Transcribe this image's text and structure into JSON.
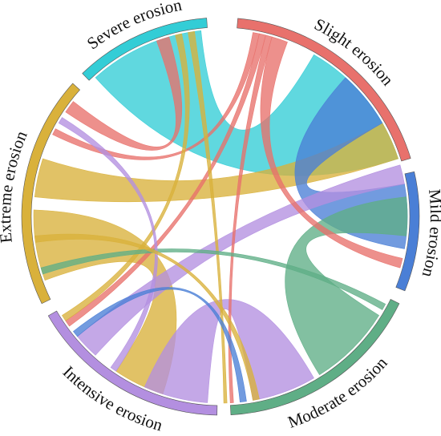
{
  "chart_data": {
    "type": "chord",
    "title": "",
    "segments": [
      {
        "name": "Slight erosion",
        "color": "#e8716c",
        "start_deg": 5,
        "end_deg": 73
      },
      {
        "name": "Mild erosion",
        "color": "#4a7fd6",
        "start_deg": 77,
        "end_deg": 112
      },
      {
        "name": "Moderate erosion",
        "color": "#5fae86",
        "start_deg": 116,
        "end_deg": 177
      },
      {
        "name": "Intensive erosion",
        "color": "#b38fe0",
        "start_deg": 181,
        "end_deg": 240
      },
      {
        "name": "Extreme erosion",
        "color": "#d9b13b",
        "start_deg": 244,
        "end_deg": 312
      },
      {
        "name": "Severe erosion",
        "color": "#33cdd6",
        "start_deg": 316,
        "end_deg": 356
      }
    ],
    "ribbons": [
      {
        "source": "Severe erosion",
        "target": "Slight erosion",
        "s": [
          318,
          354
        ],
        "t": [
          30,
          72
        ],
        "fill": "#33cdd6"
      },
      {
        "source": "Extreme erosion",
        "target": "Mild erosion",
        "s": [
          276,
          288
        ],
        "t": [
          60,
          72
        ],
        "fill": "#d9b13b"
      },
      {
        "source": "Extreme erosion",
        "target": "Intensive erosion",
        "s": [
          250,
          272
        ],
        "t": [
          198,
          214
        ],
        "fill": "#d9b13b"
      },
      {
        "source": "Mild erosion",
        "target": "Slight erosion",
        "s": [
          80,
          100
        ],
        "t": [
          42,
          60
        ],
        "fill": "#4a7fd6"
      },
      {
        "source": "Moderate erosion",
        "target": "Mild erosion",
        "s": [
          122,
          148
        ],
        "t": [
          84,
          96
        ],
        "fill": "#5fae86"
      },
      {
        "source": "Intensive erosion",
        "target": "Moderate erosion",
        "s": [
          184,
          204
        ],
        "t": [
          150,
          170
        ],
        "fill": "#b38fe0"
      },
      {
        "source": "Intensive erosion",
        "target": "Mild erosion",
        "s": [
          222,
          230
        ],
        "t": [
          74,
          80
        ],
        "fill": "#b38fe0"
      },
      {
        "source": "Slight erosion",
        "target": "Mild erosion",
        "s": [
          16,
          21
        ],
        "t": [
          103,
          106
        ],
        "fill": "#e8716c"
      },
      {
        "source": "Slight erosion",
        "target": "Extreme erosion",
        "s": [
          10,
          12
        ],
        "t": [
          296,
          298
        ],
        "fill": "#e8716c"
      },
      {
        "source": "Slight erosion",
        "target": "Intensive erosion",
        "s": [
          12,
          14
        ],
        "t": [
          234,
          236
        ],
        "fill": "#e8716c"
      },
      {
        "source": "Slight erosion",
        "target": "Moderate erosion",
        "s": [
          14,
          16
        ],
        "t": [
          176,
          177
        ],
        "fill": "#e8716c"
      },
      {
        "source": "Severe erosion",
        "target": "Extreme erosion",
        "s": [
          340,
          344
        ],
        "t": [
          304,
          308
        ],
        "fill": "#e8716c"
      },
      {
        "source": "Severe erosion",
        "target": "Intensive erosion",
        "s": [
          346,
          348
        ],
        "t": [
          236,
          238
        ],
        "fill": "#d9b13b"
      },
      {
        "source": "Severe erosion",
        "target": "Moderate erosion",
        "s": [
          350,
          352
        ],
        "t": [
          178,
          179
        ],
        "fill": "#d9b13b"
      },
      {
        "source": "Moderate erosion",
        "target": "Extreme erosion",
        "s": [
          118,
          120
        ],
        "t": [
          252,
          254
        ],
        "fill": "#5fae86"
      },
      {
        "source": "Intensive erosion",
        "target": "Severe erosion",
        "s": [
          214,
          216
        ],
        "t": [
          300,
          302
        ],
        "fill": "#b38fe0"
      },
      {
        "source": "Moderate erosion",
        "target": "Intensive erosion",
        "s": [
          172,
          174
        ],
        "t": [
          230,
          232
        ],
        "fill": "#4a7fd6"
      },
      {
        "source": "Extreme erosion",
        "target": "Moderate erosion",
        "s": [
          262,
          264
        ],
        "t": [
          168,
          170
        ],
        "fill": "#d9b13b"
      }
    ]
  }
}
